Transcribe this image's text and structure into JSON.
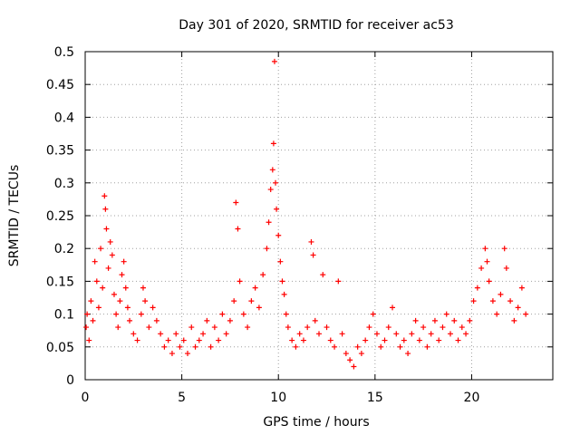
{
  "chart_data": {
    "type": "scatter",
    "title": "Day 301 of 2020, SRMTID for receiver ac53",
    "xlabel": "GPS time / hours",
    "ylabel": "SRMTID / TECUs",
    "xlim": [
      0,
      24.2
    ],
    "ylim": [
      0,
      0.5
    ],
    "x_ticks": [
      0,
      5,
      10,
      15,
      20
    ],
    "y_ticks": [
      0,
      0.05,
      0.1,
      0.15,
      0.2,
      0.25,
      0.3,
      0.35,
      0.4,
      0.45,
      0.5
    ],
    "x_tick_labels": [
      "0",
      "5",
      "10",
      "15",
      "20"
    ],
    "y_tick_labels": [
      "0",
      "0.05",
      "0.1",
      "0.15",
      "0.2",
      "0.25",
      "0.3",
      "0.35",
      "0.4",
      "0.45",
      "0.5"
    ],
    "grid": true,
    "marker": "+",
    "color": "#ff0000",
    "series": [
      {
        "name": "SRMTID",
        "points": [
          [
            0.05,
            0.08
          ],
          [
            0.1,
            0.1
          ],
          [
            0.2,
            0.06
          ],
          [
            0.3,
            0.12
          ],
          [
            0.4,
            0.09
          ],
          [
            0.5,
            0.18
          ],
          [
            0.6,
            0.15
          ],
          [
            0.7,
            0.11
          ],
          [
            0.8,
            0.2
          ],
          [
            0.9,
            0.14
          ],
          [
            1.0,
            0.28
          ],
          [
            1.05,
            0.26
          ],
          [
            1.1,
            0.23
          ],
          [
            1.2,
            0.17
          ],
          [
            1.3,
            0.21
          ],
          [
            1.4,
            0.19
          ],
          [
            1.5,
            0.13
          ],
          [
            1.6,
            0.1
          ],
          [
            1.7,
            0.08
          ],
          [
            1.8,
            0.12
          ],
          [
            1.9,
            0.16
          ],
          [
            2.0,
            0.18
          ],
          [
            2.1,
            0.14
          ],
          [
            2.2,
            0.11
          ],
          [
            2.3,
            0.09
          ],
          [
            2.5,
            0.07
          ],
          [
            2.7,
            0.06
          ],
          [
            2.9,
            0.1
          ],
          [
            3.0,
            0.14
          ],
          [
            3.1,
            0.12
          ],
          [
            3.3,
            0.08
          ],
          [
            3.5,
            0.11
          ],
          [
            3.7,
            0.09
          ],
          [
            3.9,
            0.07
          ],
          [
            4.1,
            0.05
          ],
          [
            4.3,
            0.06
          ],
          [
            4.5,
            0.04
          ],
          [
            4.7,
            0.07
          ],
          [
            4.9,
            0.05
          ],
          [
            5.1,
            0.06
          ],
          [
            5.3,
            0.04
          ],
          [
            5.5,
            0.08
          ],
          [
            5.7,
            0.05
          ],
          [
            5.9,
            0.06
          ],
          [
            6.1,
            0.07
          ],
          [
            6.3,
            0.09
          ],
          [
            6.5,
            0.05
          ],
          [
            6.7,
            0.08
          ],
          [
            6.9,
            0.06
          ],
          [
            7.1,
            0.1
          ],
          [
            7.3,
            0.07
          ],
          [
            7.5,
            0.09
          ],
          [
            7.7,
            0.12
          ],
          [
            7.8,
            0.27
          ],
          [
            7.9,
            0.23
          ],
          [
            8.0,
            0.15
          ],
          [
            8.2,
            0.1
          ],
          [
            8.4,
            0.08
          ],
          [
            8.6,
            0.12
          ],
          [
            8.8,
            0.14
          ],
          [
            9.0,
            0.11
          ],
          [
            9.2,
            0.16
          ],
          [
            9.4,
            0.2
          ],
          [
            9.5,
            0.24
          ],
          [
            9.6,
            0.29
          ],
          [
            9.7,
            0.32
          ],
          [
            9.75,
            0.36
          ],
          [
            9.8,
            0.485
          ],
          [
            9.85,
            0.3
          ],
          [
            9.9,
            0.26
          ],
          [
            10.0,
            0.22
          ],
          [
            10.1,
            0.18
          ],
          [
            10.2,
            0.15
          ],
          [
            10.3,
            0.13
          ],
          [
            10.4,
            0.1
          ],
          [
            10.5,
            0.08
          ],
          [
            10.7,
            0.06
          ],
          [
            10.9,
            0.05
          ],
          [
            11.1,
            0.07
          ],
          [
            11.3,
            0.06
          ],
          [
            11.5,
            0.08
          ],
          [
            11.7,
            0.21
          ],
          [
            11.8,
            0.19
          ],
          [
            11.9,
            0.09
          ],
          [
            12.1,
            0.07
          ],
          [
            12.3,
            0.16
          ],
          [
            12.5,
            0.08
          ],
          [
            12.7,
            0.06
          ],
          [
            12.9,
            0.05
          ],
          [
            13.1,
            0.15
          ],
          [
            13.3,
            0.07
          ],
          [
            13.5,
            0.04
          ],
          [
            13.7,
            0.03
          ],
          [
            13.9,
            0.02
          ],
          [
            14.1,
            0.05
          ],
          [
            14.3,
            0.04
          ],
          [
            14.5,
            0.06
          ],
          [
            14.7,
            0.08
          ],
          [
            14.9,
            0.1
          ],
          [
            15.1,
            0.07
          ],
          [
            15.3,
            0.05
          ],
          [
            15.5,
            0.06
          ],
          [
            15.7,
            0.08
          ],
          [
            15.9,
            0.11
          ],
          [
            16.1,
            0.07
          ],
          [
            16.3,
            0.05
          ],
          [
            16.5,
            0.06
          ],
          [
            16.7,
            0.04
          ],
          [
            16.9,
            0.07
          ],
          [
            17.1,
            0.09
          ],
          [
            17.3,
            0.06
          ],
          [
            17.5,
            0.08
          ],
          [
            17.7,
            0.05
          ],
          [
            17.9,
            0.07
          ],
          [
            18.1,
            0.09
          ],
          [
            18.3,
            0.06
          ],
          [
            18.5,
            0.08
          ],
          [
            18.7,
            0.1
          ],
          [
            18.9,
            0.07
          ],
          [
            19.1,
            0.09
          ],
          [
            19.3,
            0.06
          ],
          [
            19.5,
            0.08
          ],
          [
            19.7,
            0.07
          ],
          [
            19.9,
            0.09
          ],
          [
            20.1,
            0.12
          ],
          [
            20.3,
            0.14
          ],
          [
            20.5,
            0.17
          ],
          [
            20.7,
            0.2
          ],
          [
            20.8,
            0.18
          ],
          [
            20.9,
            0.15
          ],
          [
            21.1,
            0.12
          ],
          [
            21.3,
            0.1
          ],
          [
            21.5,
            0.13
          ],
          [
            21.7,
            0.2
          ],
          [
            21.8,
            0.17
          ],
          [
            22.0,
            0.12
          ],
          [
            22.2,
            0.09
          ],
          [
            22.4,
            0.11
          ],
          [
            22.6,
            0.14
          ],
          [
            22.8,
            0.1
          ]
        ]
      }
    ]
  }
}
